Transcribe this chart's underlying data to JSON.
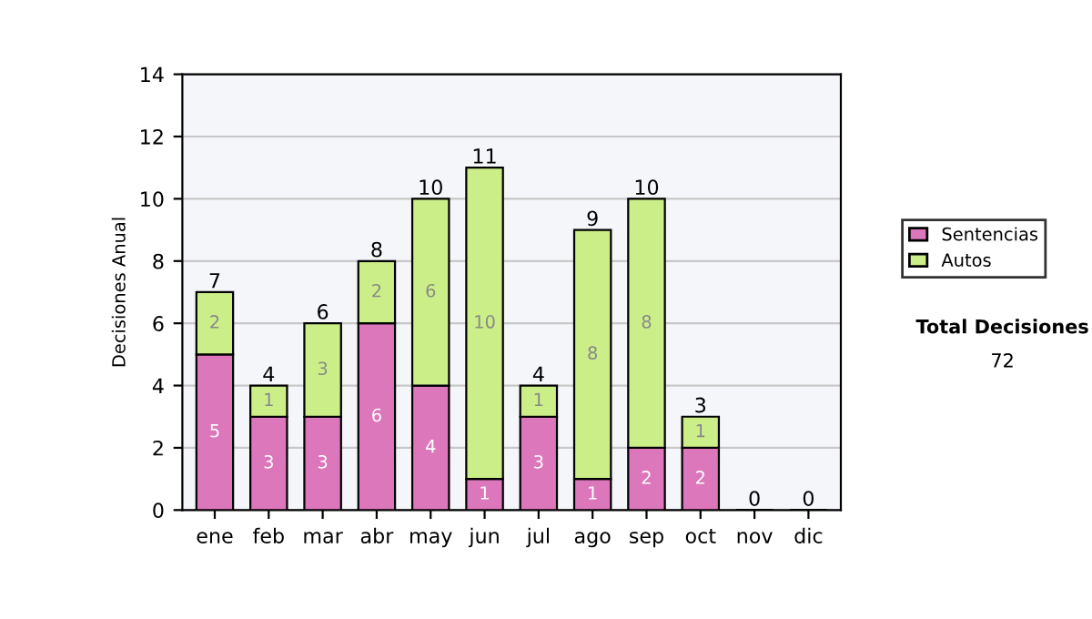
{
  "chart_data": {
    "type": "bar",
    "stacked": true,
    "ylabel": "Decisiones Anual",
    "categories": [
      "ene",
      "feb",
      "mar",
      "abr",
      "may",
      "jun",
      "jul",
      "ago",
      "sep",
      "oct",
      "nov",
      "dic"
    ],
    "series": [
      {
        "name": "Sentencias",
        "color": "#dd77bb",
        "values": [
          5,
          3,
          3,
          6,
          4,
          1,
          3,
          1,
          2,
          2,
          0,
          0
        ],
        "value_labels": [
          "5",
          "3",
          "3",
          "6",
          "4",
          "1",
          "3",
          "1",
          "2",
          "2",
          null,
          null
        ]
      },
      {
        "name": "Autos",
        "color": "#ccee88",
        "values": [
          2,
          1,
          3,
          2,
          6,
          10,
          1,
          8,
          8,
          1,
          0,
          0
        ],
        "value_labels": [
          "2",
          "1",
          "3",
          "2",
          "6",
          "10",
          "1",
          "8",
          "8",
          "1",
          null,
          null
        ]
      }
    ],
    "totals": [
      "7",
      "4",
      "6",
      "8",
      "10",
      "11",
      "4",
      "9",
      "10",
      "3",
      "0",
      "0"
    ],
    "ylim": [
      0,
      14
    ],
    "yticks": [
      0,
      2,
      4,
      6,
      8,
      10,
      12,
      14
    ],
    "grid": "y",
    "legend": "right",
    "annotations": [
      "Total Decisiones",
      "72"
    ]
  }
}
